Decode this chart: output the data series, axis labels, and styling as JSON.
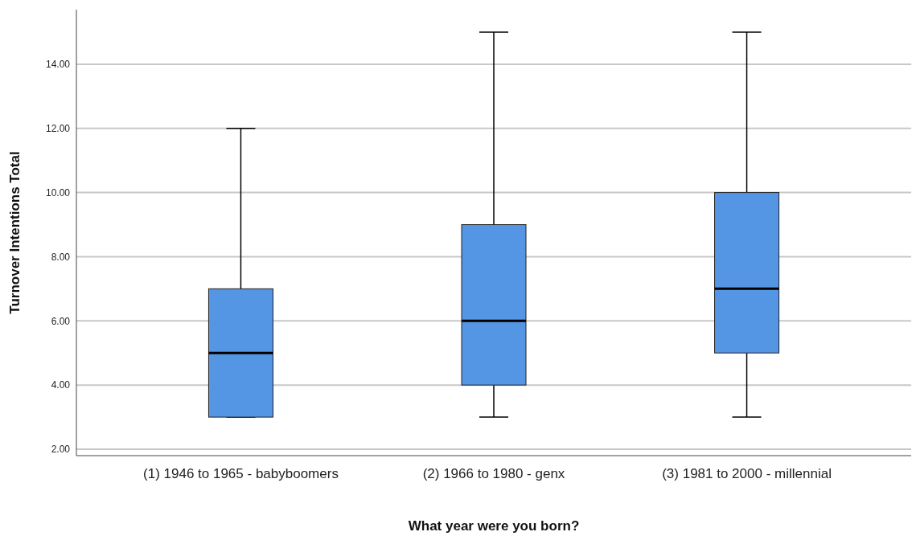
{
  "chart_data": {
    "type": "box",
    "xlabel": "What year were you born?",
    "ylabel": "Turnover Intentions Total",
    "categories": [
      "(1) 1946 to 1965 - babyboomers",
      "(2) 1966 to 1980 - genx",
      "(3) 1981 to 2000 - millennial"
    ],
    "color": "#5495e4",
    "boxes": [
      {
        "low": 3,
        "q1": 3,
        "median": 5,
        "q3": 7,
        "high": 12
      },
      {
        "low": 3,
        "q1": 4,
        "median": 6,
        "q3": 9,
        "high": 15
      },
      {
        "low": 3,
        "q1": 5,
        "median": 7,
        "q3": 10,
        "high": 15
      }
    ],
    "ylim": [
      1.8,
      15.7
    ],
    "yticks": [
      {
        "value": 2,
        "label": "2.00"
      },
      {
        "value": 4,
        "label": "4.00"
      },
      {
        "value": 6,
        "label": "6.00"
      },
      {
        "value": 8,
        "label": "8.00"
      },
      {
        "value": 10,
        "label": "10.00"
      },
      {
        "value": 12,
        "label": "12.00"
      },
      {
        "value": 14,
        "label": "14.00"
      }
    ],
    "grid": "y"
  }
}
